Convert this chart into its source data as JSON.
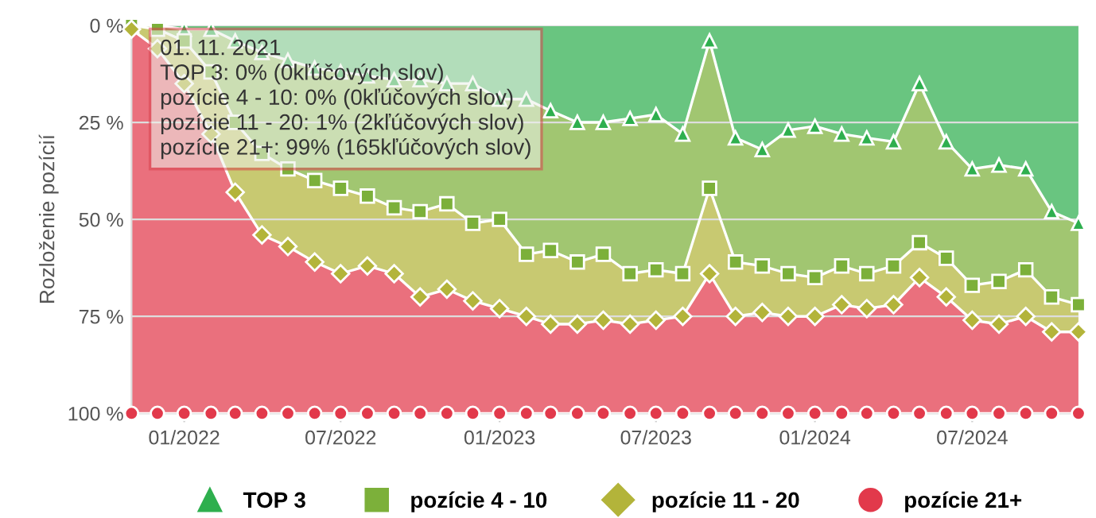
{
  "chart_data": {
    "type": "area",
    "stacked": true,
    "ylabel": "Rozloženie pozícií",
    "x": [
      "2021-11",
      "2021-12",
      "2022-01",
      "2022-02",
      "2022-03",
      "2022-04",
      "2022-05",
      "2022-06",
      "2022-07",
      "2022-08",
      "2022-09",
      "2022-10",
      "2022-11",
      "2022-12",
      "2023-01",
      "2023-02",
      "2023-03",
      "2023-04",
      "2023-05",
      "2023-06",
      "2023-07",
      "2023-08",
      "2023-09",
      "2023-10",
      "2023-11",
      "2023-12",
      "2024-01",
      "2024-02",
      "2024-03",
      "2024-04",
      "2024-05",
      "2024-06",
      "2024-07",
      "2024-08",
      "2024-09",
      "2024-10",
      "2024-11"
    ],
    "series": [
      {
        "name": "TOP 3",
        "color": "#2eaf4e",
        "marker": "triangle",
        "values": [
          0,
          0,
          1,
          1,
          4,
          7,
          9,
          11,
          12,
          13,
          14,
          14,
          15,
          15,
          19,
          19,
          22,
          25,
          25,
          24,
          23,
          28,
          4,
          29,
          32,
          27,
          26,
          28,
          29,
          30,
          15,
          30,
          37,
          36,
          37,
          48,
          51
        ]
      },
      {
        "name": "pozície 4 - 10",
        "color": "#7cb03a",
        "marker": "square",
        "values": [
          0,
          1,
          3,
          11,
          21,
          26,
          28,
          29,
          30,
          31,
          33,
          34,
          31,
          36,
          31,
          40,
          36,
          36,
          34,
          40,
          40,
          36,
          38,
          32,
          30,
          37,
          39,
          34,
          35,
          32,
          41,
          30,
          30,
          30,
          26,
          22,
          21
        ]
      },
      {
        "name": "pozície 11 - 20",
        "color": "#b3b43a",
        "marker": "diamond",
        "values": [
          1,
          5,
          11,
          16,
          18,
          21,
          20,
          21,
          22,
          18,
          17,
          22,
          22,
          20,
          23,
          16,
          19,
          16,
          17,
          13,
          13,
          11,
          22,
          14,
          12,
          11,
          10,
          10,
          9,
          10,
          9,
          10,
          9,
          11,
          12,
          9,
          7
        ]
      },
      {
        "name": "pozície 21+",
        "color": "#e2394b",
        "marker": "circle",
        "values": [
          99,
          94,
          85,
          72,
          57,
          46,
          43,
          39,
          36,
          38,
          36,
          30,
          32,
          29,
          27,
          25,
          23,
          23,
          24,
          23,
          24,
          25,
          36,
          25,
          26,
          25,
          25,
          28,
          27,
          28,
          35,
          30,
          24,
          23,
          25,
          21,
          21
        ]
      }
    ],
    "xlim": [
      "2021-11",
      "2024-11"
    ],
    "xticks": [
      {
        "value": "2022-01",
        "label": "01/2022"
      },
      {
        "value": "2022-07",
        "label": "07/2022"
      },
      {
        "value": "2023-01",
        "label": "01/2023"
      },
      {
        "value": "2023-07",
        "label": "07/2023"
      },
      {
        "value": "2024-01",
        "label": "01/2024"
      },
      {
        "value": "2024-07",
        "label": "07/2024"
      }
    ],
    "ylim": [
      100,
      0
    ],
    "yticks": [
      {
        "value": 0,
        "label": "0 %"
      },
      {
        "value": 25,
        "label": "25 %"
      },
      {
        "value": 50,
        "label": "50 %"
      },
      {
        "value": 75,
        "label": "75 %"
      },
      {
        "value": 100,
        "label": "100 %"
      }
    ],
    "grid": "y",
    "legend": "bottom",
    "annotations": [
      "01. 11. 2021",
      "TOP 3: 0% (0kľúčových slov)",
      "pozície 4 - 10: 0% (0kľúčových slov)",
      "pozície 11 - 20: 1% (2kľúčových slov)",
      "pozície 21+: 99% (165kľúčových slov)"
    ]
  }
}
